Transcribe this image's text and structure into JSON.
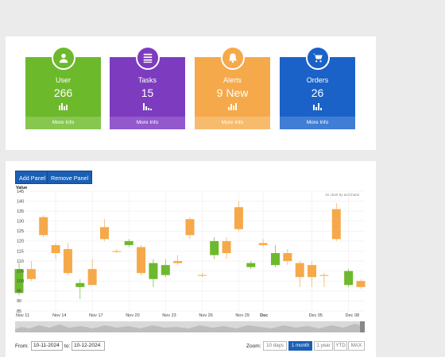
{
  "cards": [
    {
      "title": "User",
      "value": "266",
      "footer": "More Info",
      "icon": "user-icon",
      "color": "#6db92c",
      "footer_color": "#86c750"
    },
    {
      "title": "Tasks",
      "value": "15",
      "footer": "More Info",
      "icon": "list-icon",
      "color": "#7d3cbf",
      "footer_color": "#9358cc"
    },
    {
      "title": "Alerts",
      "value": "9 New",
      "footer": "More Info",
      "icon": "bell-icon",
      "color": "#f5a94a",
      "footer_color": "#f7bb6e"
    },
    {
      "title": "Orders",
      "value": "26",
      "footer": "More Info",
      "icon": "cart-icon",
      "color": "#1a62c8",
      "footer_color": "#3f7ed4"
    }
  ],
  "toolbar": {
    "add_label": "Add Panel",
    "remove_label": "Remove Panel"
  },
  "chart": {
    "y_title": "Value",
    "credit": "JS chart by amCharts",
    "up_color": "#f5a94a",
    "down_color": "#6db92c"
  },
  "chart_data": {
    "type": "candlestick",
    "y_ticks": [
      85,
      90,
      95,
      100,
      105,
      110,
      115,
      120,
      125,
      130,
      135,
      140,
      145
    ],
    "x_labels": [
      {
        "label": "Nov 11",
        "day": 0
      },
      {
        "label": "Nov 14",
        "day": 3
      },
      {
        "label": "Nov 17",
        "day": 6
      },
      {
        "label": "Nov 20",
        "day": 9
      },
      {
        "label": "Nov 23",
        "day": 12
      },
      {
        "label": "Nov 26",
        "day": 15
      },
      {
        "label": "Nov 29",
        "day": 18
      },
      {
        "label": "Dec",
        "day": 20
      },
      {
        "label": "Dec 05",
        "day": 24
      },
      {
        "label": "Dec 08",
        "day": 27
      }
    ],
    "candles": [
      {
        "day": 0,
        "open": 106,
        "close": 94,
        "high": 109,
        "low": 93
      },
      {
        "day": 1,
        "open": 101,
        "close": 106,
        "high": 110,
        "low": 100
      },
      {
        "day": 2,
        "open": 123,
        "close": 132,
        "high": 133,
        "low": 122
      },
      {
        "day": 3,
        "open": 114,
        "close": 118,
        "high": 119,
        "low": 111
      },
      {
        "day": 4,
        "open": 104,
        "close": 116,
        "high": 119,
        "low": 103
      },
      {
        "day": 5,
        "open": 99,
        "close": 97,
        "high": 101,
        "low": 91
      },
      {
        "day": 6,
        "open": 98,
        "close": 106,
        "high": 111,
        "low": 98
      },
      {
        "day": 7,
        "open": 121,
        "close": 127,
        "high": 131,
        "low": 120
      },
      {
        "day": 8,
        "open": 115,
        "close": 115,
        "high": 116,
        "low": 114
      },
      {
        "day": 9,
        "open": 120,
        "close": 118,
        "high": 121,
        "low": 117
      },
      {
        "day": 10,
        "open": 104,
        "close": 117,
        "high": 118,
        "low": 103
      },
      {
        "day": 11,
        "open": 109,
        "close": 101,
        "high": 111,
        "low": 97
      },
      {
        "day": 12,
        "open": 108,
        "close": 103,
        "high": 111,
        "low": 102
      },
      {
        "day": 13,
        "open": 109,
        "close": 110,
        "high": 113,
        "low": 108
      },
      {
        "day": 14,
        "open": 123,
        "close": 131,
        "high": 132,
        "low": 121
      },
      {
        "day": 15,
        "open": 103,
        "close": 103,
        "high": 104,
        "low": 102
      },
      {
        "day": 16,
        "open": 120,
        "close": 113,
        "high": 122,
        "low": 111
      },
      {
        "day": 17,
        "open": 114,
        "close": 120,
        "high": 122,
        "low": 111
      },
      {
        "day": 18,
        "open": 126,
        "close": 137,
        "high": 140,
        "low": 125
      },
      {
        "day": 19,
        "open": 109,
        "close": 107,
        "high": 110,
        "low": 106
      },
      {
        "day": 20,
        "open": 118,
        "close": 119,
        "high": 121,
        "low": 117
      },
      {
        "day": 21,
        "open": 114,
        "close": 108,
        "high": 118,
        "low": 107
      },
      {
        "day": 22,
        "open": 110,
        "close": 114,
        "high": 116,
        "low": 108
      },
      {
        "day": 23,
        "open": 102,
        "close": 109,
        "high": 110,
        "low": 97
      },
      {
        "day": 24,
        "open": 102,
        "close": 108,
        "high": 110,
        "low": 97
      },
      {
        "day": 25,
        "open": 103,
        "close": 103,
        "high": 104,
        "low": 97
      },
      {
        "day": 26,
        "open": 121,
        "close": 136,
        "high": 139,
        "low": 120
      },
      {
        "day": 27,
        "open": 105,
        "close": 98,
        "high": 106,
        "low": 97
      },
      {
        "day": 28,
        "open": 97,
        "close": 100,
        "high": 101,
        "low": 96
      }
    ]
  },
  "date_range": {
    "from_label": "From:",
    "from": "10-11-2024",
    "to_label": "to:",
    "to": "10-12-2024"
  },
  "zoom": {
    "label": "Zoom:",
    "options": [
      "10 days",
      "1 month",
      "1 year",
      "YTD",
      "MAX"
    ],
    "active": "1 month"
  }
}
